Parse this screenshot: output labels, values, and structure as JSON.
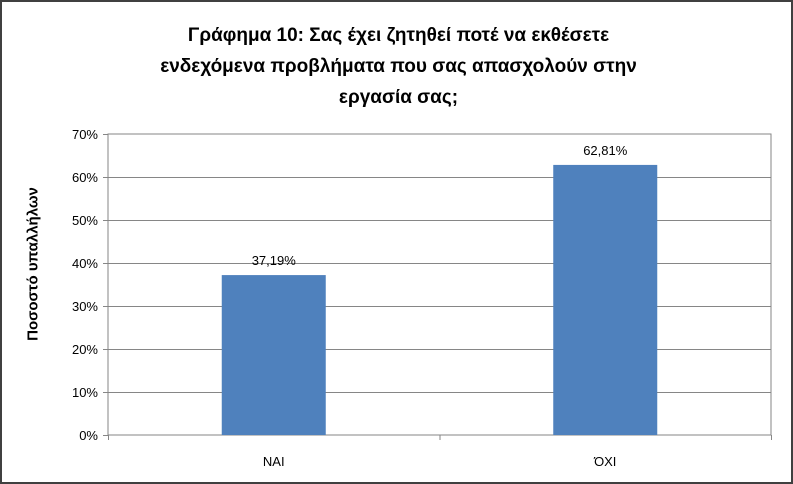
{
  "chart_data": {
    "type": "bar",
    "title_lines": [
      "Γράφημα 10: Σας έχει ζητηθεί ποτέ να εκθέσετε",
      "ενδεχόμενα προβλήματα που σας απασχολούν στην",
      "εργασία σας;"
    ],
    "xlabel": "",
    "ylabel": "Ποσοστό υπαλλήλων",
    "categories": [
      "ΝΑΙ",
      "ΌΧΙ"
    ],
    "values": [
      37.19,
      62.81
    ],
    "data_labels": [
      "37,19%",
      "62,81%"
    ],
    "ylim": [
      0,
      70
    ],
    "yticks": [
      0,
      10,
      20,
      30,
      40,
      50,
      60,
      70
    ],
    "ytick_labels": [
      "0%",
      "10%",
      "20%",
      "30%",
      "40%",
      "50%",
      "60%",
      "70%"
    ],
    "grid": true,
    "legend": "none",
    "bar_color": "#4F81BD"
  }
}
